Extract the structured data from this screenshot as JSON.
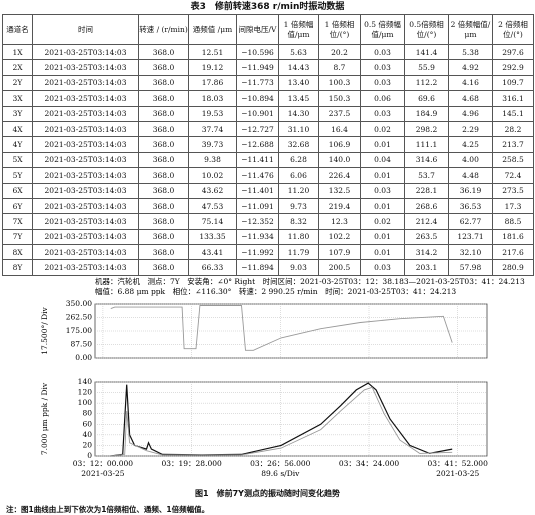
{
  "table": {
    "title": "表3　修前转速368 r/min时振动数据",
    "header": [
      "通道名",
      "时间",
      "转速 / (r/min)",
      "通频值 /μm",
      "间隙电压/V",
      "1 倍频幅值/μm",
      "1 倍频相位/(°)",
      "0.5 倍频幅值/μm",
      "0.5倍频相位/(°)",
      "2 倍频幅值/μm",
      "2 倍频相位/(°)"
    ],
    "rows": [
      [
        "1X",
        "2021-03-25T03:14:03",
        "368.0",
        "12.51",
        "−10.596",
        "5.63",
        "20.2",
        "0.03",
        "141.4",
        "5.38",
        "297.6"
      ],
      [
        "2X",
        "2021-03-25T03:14:03",
        "368.0",
        "19.12",
        "−11.949",
        "14.43",
        "8.7",
        "0.03",
        "55.9",
        "4.92",
        "292.9"
      ],
      [
        "2Y",
        "2021-03-25T03:14:03",
        "368.0",
        "17.86",
        "−11.773",
        "13.40",
        "100.3",
        "0.03",
        "112.2",
        "4.16",
        "109.7"
      ],
      [
        "3X",
        "2021-03-25T03:14:03",
        "368.0",
        "18.03",
        "−10.894",
        "13.45",
        "150.3",
        "0.06",
        "69.6",
        "4.68",
        "316.1"
      ],
      [
        "3Y",
        "2021-03-25T03:14:03",
        "368.0",
        "19.53",
        "−10.901",
        "14.30",
        "237.5",
        "0.03",
        "184.9",
        "4.96",
        "145.1"
      ],
      [
        "4X",
        "2021-03-25T03:14:03",
        "368.0",
        "37.74",
        "−12.727",
        "31.10",
        "16.4",
        "0.02",
        "298.2",
        "2.29",
        "28.2"
      ],
      [
        "4Y",
        "2021-03-25T03:14:03",
        "368.0",
        "39.73",
        "−12.688",
        "32.68",
        "106.9",
        "0.01",
        "111.1",
        "4.25",
        "213.7"
      ],
      [
        "5X",
        "2021-03-25T03:14:03",
        "368.0",
        "9.38",
        "−11.411",
        "6.28",
        "140.0",
        "0.04",
        "314.6",
        "4.00",
        "258.5"
      ],
      [
        "5Y",
        "2021-03-25T03:14:03",
        "368.0",
        "10.02",
        "−11.476",
        "6.06",
        "226.4",
        "0.01",
        "53.7",
        "4.48",
        "72.4"
      ],
      [
        "6X",
        "2021-03-25T03:14:03",
        "368.0",
        "43.62",
        "−11.401",
        "11.20",
        "132.5",
        "0.03",
        "228.1",
        "36.19",
        "273.5"
      ],
      [
        "6Y",
        "2021-03-25T03:14:03",
        "368.0",
        "47.53",
        "−11.091",
        "9.73",
        "219.4",
        "0.01",
        "268.6",
        "36.53",
        "17.3"
      ],
      [
        "7X",
        "2021-03-25T03:14:03",
        "368.0",
        "75.14",
        "−12.352",
        "8.32",
        "12.3",
        "0.02",
        "212.4",
        "62.77",
        "88.5"
      ],
      [
        "7Y",
        "2021-03-25T03:14:03",
        "368.0",
        "133.35",
        "−11.934",
        "11.80",
        "102.2",
        "0.01",
        "263.5",
        "123.71",
        "181.6"
      ],
      [
        "8X",
        "2021-03-25T03:14:03",
        "368.0",
        "43.41",
        "−11.992",
        "11.79",
        "107.9",
        "0.01",
        "314.2",
        "32.10",
        "217.6"
      ],
      [
        "8Y",
        "2021-03-25T03:14:03",
        "368.0",
        "66.33",
        "−11.894",
        "9.03",
        "200.5",
        "0.03",
        "203.1",
        "57.98",
        "280.9"
      ]
    ]
  },
  "figure": {
    "info": [
      "机器：汽轮机　测点：7Y　安装角：∠0° Right　时间区间：2021-03-25T03：12：38.183—2021-03-25T03：41：24.213",
      "幅值：6.88 μm ppk　相位：∠116.30°　转速：2 990.25 r/min　时间：2021-03-25T03：41：24.213"
    ],
    "caption": "图1　修前7Y测点的振动随时间变化趋势",
    "note": "注：图1曲线由上到下依次为1倍频相位、通频、1倍频幅值。"
  },
  "chart_data": [
    {
      "type": "line",
      "ylabel": "17.500°/ Div",
      "xlim": [
        -40,
        1940
      ],
      "ylim": [
        0,
        350
      ],
      "yticks": [
        {
          "value": 0,
          "label": "0.00"
        },
        {
          "value": 87.5,
          "label": "87.50"
        },
        {
          "value": 175,
          "label": "175.00"
        },
        {
          "value": 262.5,
          "label": "262.50"
        },
        {
          "value": 350,
          "label": "350.00"
        }
      ],
      "series": [
        {
          "color": "#999999",
          "x": [
            40,
            60,
            400,
            410,
            470,
            490,
            700,
            720,
            760,
            900,
            1100,
            1300,
            1500,
            1650,
            1720,
            1764
          ],
          "values": [
            320,
            330,
            330,
            60,
            60,
            340,
            340,
            50,
            50,
            130,
            190,
            230,
            255,
            265,
            270,
            100
          ]
        }
      ]
    },
    {
      "type": "line",
      "ylabel": "7.000 μm ppk / Div",
      "xlim": [
        -40,
        1940
      ],
      "ylim": [
        0,
        140
      ],
      "yticks": [
        0,
        20,
        40,
        60,
        80,
        100,
        120,
        140
      ],
      "xticks": [
        {
          "value": 0,
          "label": "03：12：00.000"
        },
        {
          "value": 448,
          "label": "03：19：28.000"
        },
        {
          "value": 896,
          "label": "03：26：56.000"
        },
        {
          "value": 1344,
          "label": "03：34：24.000"
        },
        {
          "value": 1792,
          "label": "03：41：52.000"
        }
      ],
      "annotations": [
        "2021-03-25",
        "89.6 s/Div",
        "2021-03-25"
      ],
      "series": [
        {
          "color": "#111111",
          "x": [
            40,
            100,
            120,
            135,
            160,
            220,
            230,
            245,
            300,
            500,
            700,
            900,
            1100,
            1200,
            1280,
            1340,
            1380,
            1450,
            1550,
            1650,
            1764
          ],
          "values": [
            0,
            3,
            135,
            40,
            20,
            13,
            25,
            13,
            3,
            2,
            3,
            20,
            60,
            95,
            125,
            138,
            125,
            70,
            20,
            5,
            13
          ]
        },
        {
          "color": "#999999",
          "x": [
            40,
            110,
            120,
            135,
            220,
            300,
            700,
            900,
            1100,
            1200,
            1320,
            1360,
            1420,
            1500,
            1600,
            1764
          ],
          "values": [
            0,
            3,
            85,
            25,
            10,
            2,
            2,
            15,
            50,
            85,
            125,
            130,
            80,
            30,
            5,
            7
          ]
        }
      ]
    }
  ]
}
